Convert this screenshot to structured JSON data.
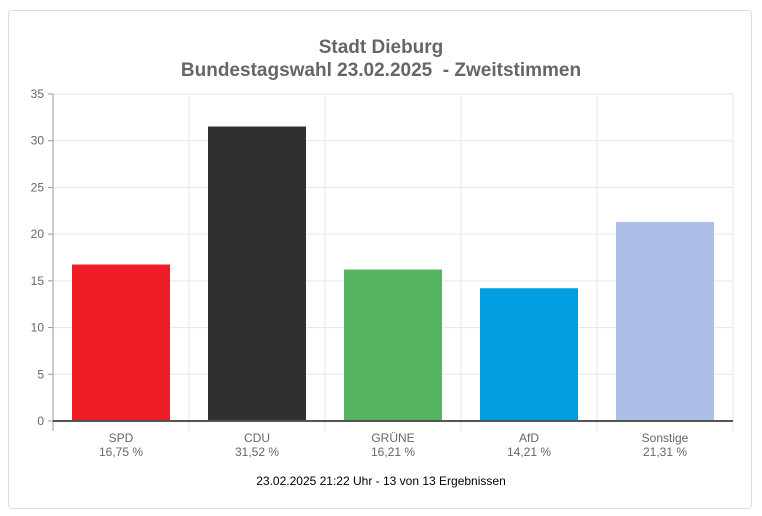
{
  "chart_data": {
    "type": "bar",
    "title": "Stadt Dieburg",
    "subtitle": "Bundestagswahl 23.02.2025  - Zweitstimmen",
    "categories": [
      "SPD",
      "CDU",
      "GRÜNE",
      "AfD",
      "Sonstige"
    ],
    "value_labels": [
      "16,75 %",
      "31,52 %",
      "16,21 %",
      "14,21 %",
      "21,31 %"
    ],
    "values": [
      16.75,
      31.52,
      16.21,
      14.21,
      21.31
    ],
    "colors": [
      "#ee1c25",
      "#313031",
      "#55b460",
      "#009ee0",
      "#abbee5"
    ],
    "ylim": [
      0,
      35
    ],
    "yticks": [
      0,
      5,
      10,
      15,
      20,
      25,
      30,
      35
    ],
    "grid": true,
    "xlabel": "",
    "ylabel": ""
  },
  "footer": "23.02.2025 21:22 Uhr - 13 von 13 Ergebnissen"
}
